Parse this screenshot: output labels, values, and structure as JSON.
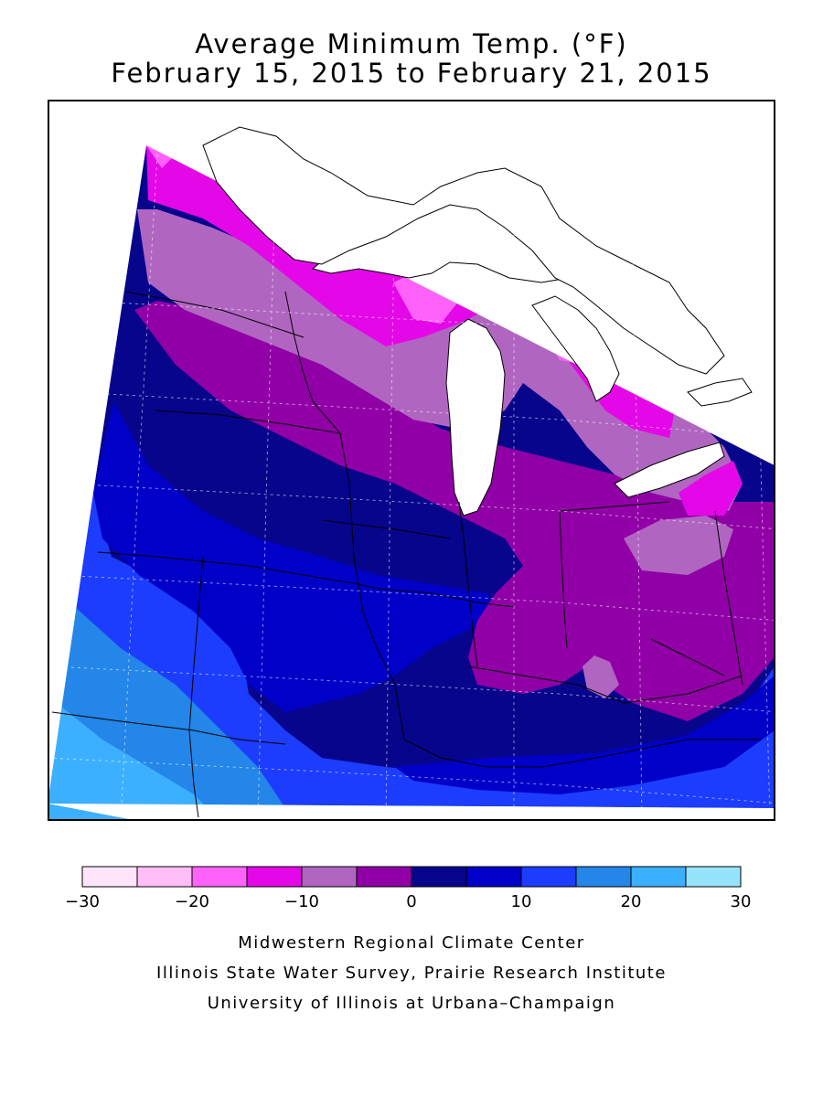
{
  "title": {
    "line1": "Average Minimum Temp. (°F)",
    "line2": "February 15, 2015 to February 21, 2015"
  },
  "legend": {
    "bins": [
      {
        "min": -30,
        "max": -25,
        "color": "#ffe4fa"
      },
      {
        "min": -25,
        "max": -20,
        "color": "#ffbef5"
      },
      {
        "min": -20,
        "max": -15,
        "color": "#fe62fa"
      },
      {
        "min": -15,
        "max": -10,
        "color": "#e407e8"
      },
      {
        "min": -10,
        "max": -5,
        "color": "#b066c1"
      },
      {
        "min": -5,
        "max": 0,
        "color": "#9000a6"
      },
      {
        "min": 0,
        "max": 5,
        "color": "#07058c"
      },
      {
        "min": 5,
        "max": 10,
        "color": "#0000c8"
      },
      {
        "min": 10,
        "max": 15,
        "color": "#1c3cfe"
      },
      {
        "min": 15,
        "max": 20,
        "color": "#2386e8"
      },
      {
        "min": 20,
        "max": 25,
        "color": "#3cb0ff"
      },
      {
        "min": 25,
        "max": 30,
        "color": "#96e4fb"
      }
    ],
    "tick_labels": [
      "−30",
      "−20",
      "−10",
      "0",
      "10",
      "20",
      "30"
    ]
  },
  "map": {
    "region": "Midwest",
    "water_color": "#ffffff",
    "border_color": "#000000",
    "graticule": "dashed"
  },
  "credits": [
    "Midwestern Regional Climate Center",
    "Illinois State Water Survey, Prairie Research Institute",
    "University of Illinois at Urbana–Champaign"
  ]
}
